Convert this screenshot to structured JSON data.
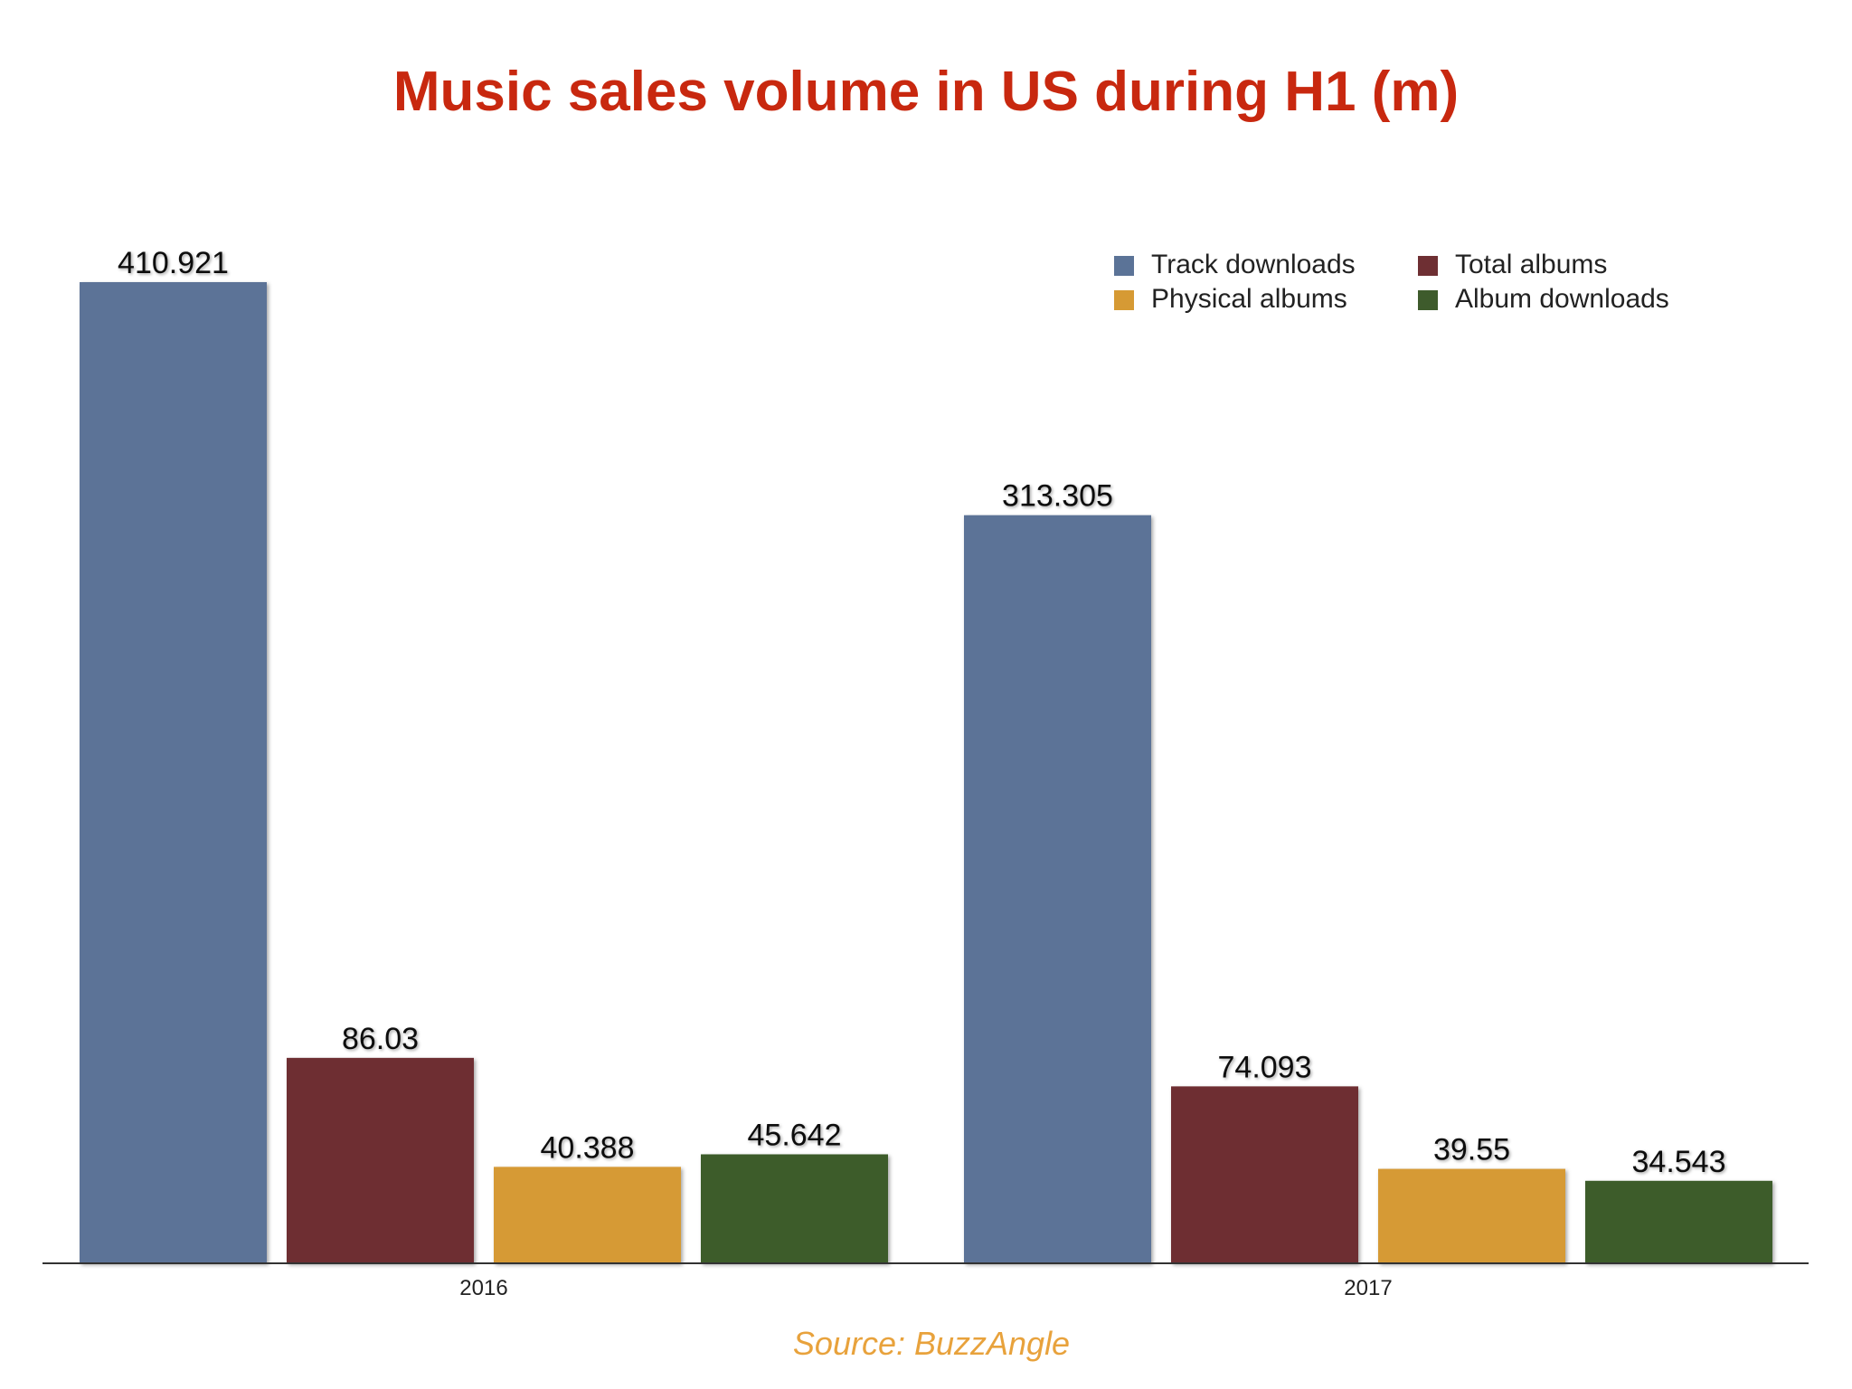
{
  "chart_data": {
    "type": "bar",
    "title": "Music sales volume in US during H1 (m)",
    "categories": [
      "2016",
      "2017"
    ],
    "series": [
      {
        "name": "Track downloads",
        "values": [
          410.921,
          313.305
        ],
        "labels": [
          "410.921",
          "313.305"
        ],
        "color": "#5b7397"
      },
      {
        "name": "Total albums",
        "values": [
          86.03,
          74.093
        ],
        "labels": [
          "86.03",
          "74.093"
        ],
        "color": "#6e2f33"
      },
      {
        "name": "Physical albums",
        "values": [
          40.388,
          39.55
        ],
        "labels": [
          "40.388",
          "39.55"
        ],
        "color": "#d69a34"
      },
      {
        "name": "Album downloads",
        "values": [
          45.642,
          34.543
        ],
        "labels": [
          "45.642",
          "34.543"
        ],
        "color": "#3e5b2c"
      }
    ],
    "legend_order": [
      "Track downloads",
      "Total albums",
      "Physical albums",
      "Album downloads"
    ],
    "legend_position": "top-right",
    "ylim": [
      0,
      420
    ],
    "grid": false,
    "xlabel": "",
    "ylabel": ""
  },
  "source": "Source: BuzzAngle",
  "colors": {
    "title": "#c8280f",
    "source": "#e8a23c",
    "axis": "#333333",
    "labels": "#111111"
  }
}
